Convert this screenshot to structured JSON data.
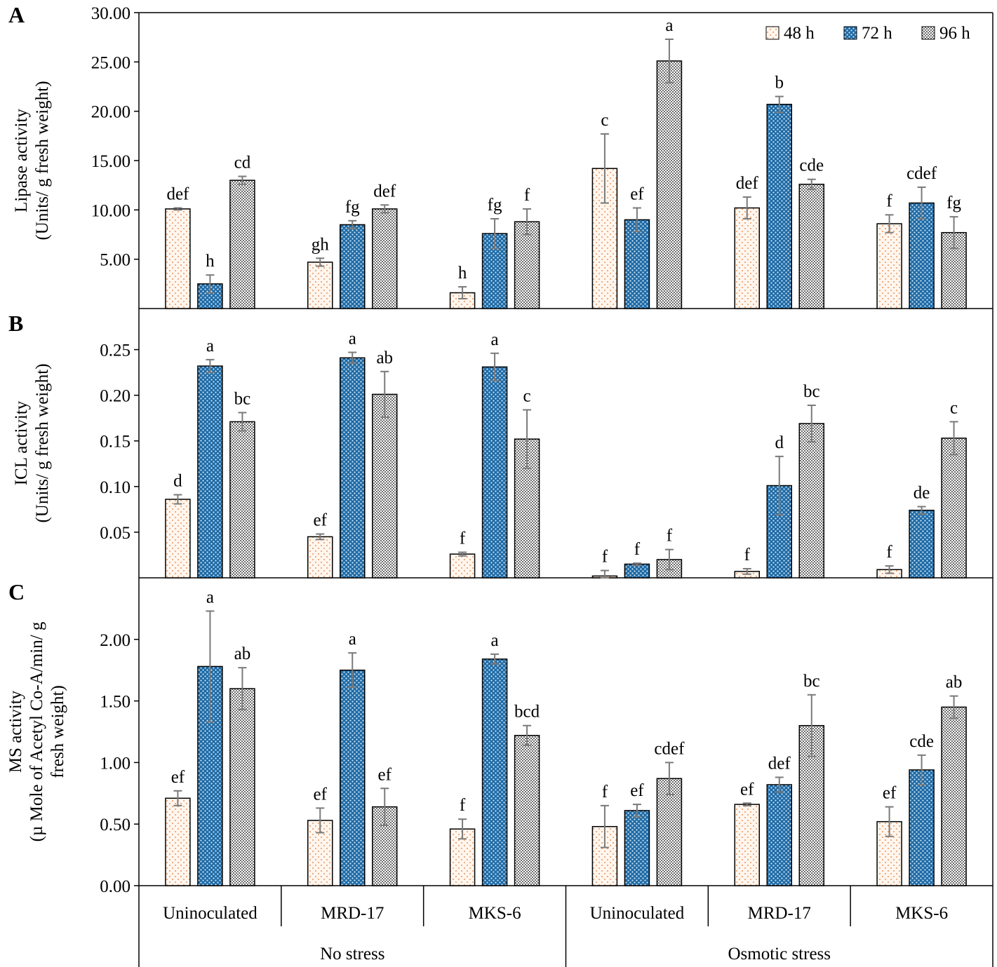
{
  "colors": {
    "h48_fill": "#fff6ee",
    "h48_dot": "#e07a3a",
    "h72_fill": "#1f6aa5",
    "h72_dot": "#cfe8f7",
    "h96_fill": "#ffffff",
    "h96_dot": "#6e6e6e",
    "axis": "#000000",
    "error_bar": "#7a7a7a"
  },
  "legend": {
    "placement": "top-right",
    "items": [
      "48 h",
      "72 h",
      "96 h"
    ]
  },
  "x_axis": {
    "groups": [
      "Uninoculated",
      "MRD-17",
      "MKS-6",
      "Uninoculated",
      "MRD-17",
      "MKS-6"
    ],
    "conditions": [
      "No stress",
      "Osmotic stress"
    ]
  },
  "chart_data": [
    {
      "type": "bar",
      "panel_label": "A",
      "ylabel_lines": [
        "Lipase activity",
        "(Units/ g fresh weight)"
      ],
      "ylim": [
        0,
        30
      ],
      "yticks": [
        5,
        10,
        15,
        20,
        25,
        30
      ],
      "ytick_labels": [
        "5.00",
        "10.00",
        "15.00",
        "20.00",
        "25.00",
        "30.00"
      ],
      "categories": [
        "Uninoculated",
        "MRD-17",
        "MKS-6",
        "Uninoculated",
        "MRD-17",
        "MKS-6"
      ],
      "series": [
        {
          "name": "48 h",
          "values": [
            10.1,
            4.7,
            1.6,
            14.2,
            10.2,
            8.6
          ],
          "errors": [
            0.1,
            0.4,
            0.6,
            3.5,
            1.1,
            0.9
          ],
          "letters": [
            "def",
            "gh",
            "h",
            "c",
            "def",
            "f"
          ]
        },
        {
          "name": "72 h",
          "values": [
            2.5,
            8.5,
            7.6,
            9.0,
            20.7,
            10.7
          ],
          "errors": [
            0.9,
            0.4,
            1.5,
            1.2,
            0.8,
            1.6
          ],
          "letters": [
            "h",
            "fg",
            "fg",
            "ef",
            "b",
            "cdef"
          ]
        },
        {
          "name": "96 h",
          "values": [
            13.0,
            10.1,
            8.8,
            25.1,
            12.6,
            7.7
          ],
          "errors": [
            0.4,
            0.4,
            1.3,
            2.2,
            0.5,
            1.6
          ],
          "letters": [
            "cd",
            "def",
            "f",
            "a",
            "cde",
            "fg"
          ]
        }
      ]
    },
    {
      "type": "bar",
      "panel_label": "B",
      "ylabel_lines": [
        "ICL activity",
        "(Units/ g fresh weight)"
      ],
      "ylim": [
        0,
        0.295
      ],
      "yticks": [
        0.05,
        0.1,
        0.15,
        0.2,
        0.25
      ],
      "ytick_labels": [
        "0.05",
        "0.10",
        "0.15",
        "0.20",
        "0.25"
      ],
      "categories": [
        "Uninoculated",
        "MRD-17",
        "MKS-6",
        "Uninoculated",
        "MRD-17",
        "MKS-6"
      ],
      "series": [
        {
          "name": "48 h",
          "values": [
            0.086,
            0.045,
            0.026,
            0.002,
            0.007,
            0.009
          ],
          "errors": [
            0.005,
            0.003,
            0.002,
            0.006,
            0.003,
            0.004
          ],
          "letters": [
            "d",
            "ef",
            "f",
            "f",
            "f",
            "f"
          ]
        },
        {
          "name": "72 h",
          "values": [
            0.232,
            0.241,
            0.231,
            0.015,
            0.101,
            0.074
          ],
          "errors": [
            0.007,
            0.006,
            0.015,
            0.001,
            0.032,
            0.004
          ],
          "letters": [
            "a",
            "a",
            "a",
            "f",
            "d",
            "de"
          ]
        },
        {
          "name": "96 h",
          "values": [
            0.171,
            0.201,
            0.152,
            0.02,
            0.169,
            0.153
          ],
          "errors": [
            0.01,
            0.025,
            0.032,
            0.011,
            0.02,
            0.018
          ],
          "letters": [
            "bc",
            "ab",
            "c",
            "f",
            "bc",
            "c"
          ]
        }
      ]
    },
    {
      "type": "bar",
      "panel_label": "C",
      "ylabel_lines": [
        "MS activity",
        "(µ Mole of Acetyl Co-A/min/ g",
        "fresh weight)"
      ],
      "ylim": [
        0,
        2.5
      ],
      "yticks": [
        0,
        0.5,
        1.0,
        1.5,
        2.0
      ],
      "ytick_labels": [
        "0.00",
        "0.50",
        "1.00",
        "1.50",
        "2.00"
      ],
      "categories": [
        "Uninoculated",
        "MRD-17",
        "MKS-6",
        "Uninoculated",
        "MRD-17",
        "MKS-6"
      ],
      "series": [
        {
          "name": "48 h",
          "values": [
            0.71,
            0.53,
            0.46,
            0.48,
            0.66,
            0.52
          ],
          "errors": [
            0.06,
            0.1,
            0.08,
            0.17,
            0.01,
            0.12
          ],
          "letters": [
            "ef",
            "ef",
            "f",
            "f",
            "ef",
            "ef"
          ]
        },
        {
          "name": "72 h",
          "values": [
            1.78,
            1.75,
            1.84,
            0.61,
            0.82,
            0.94
          ],
          "errors": [
            0.45,
            0.14,
            0.04,
            0.05,
            0.06,
            0.12
          ],
          "letters": [
            "a",
            "a",
            "a",
            "ef",
            "def",
            "cde"
          ]
        },
        {
          "name": "96 h",
          "values": [
            1.6,
            0.64,
            1.22,
            0.87,
            1.3,
            1.45
          ],
          "errors": [
            0.17,
            0.15,
            0.08,
            0.13,
            0.25,
            0.09
          ],
          "letters": [
            "ab",
            "ef",
            "bcd",
            "cdef",
            "bc",
            "ab"
          ]
        }
      ]
    }
  ]
}
